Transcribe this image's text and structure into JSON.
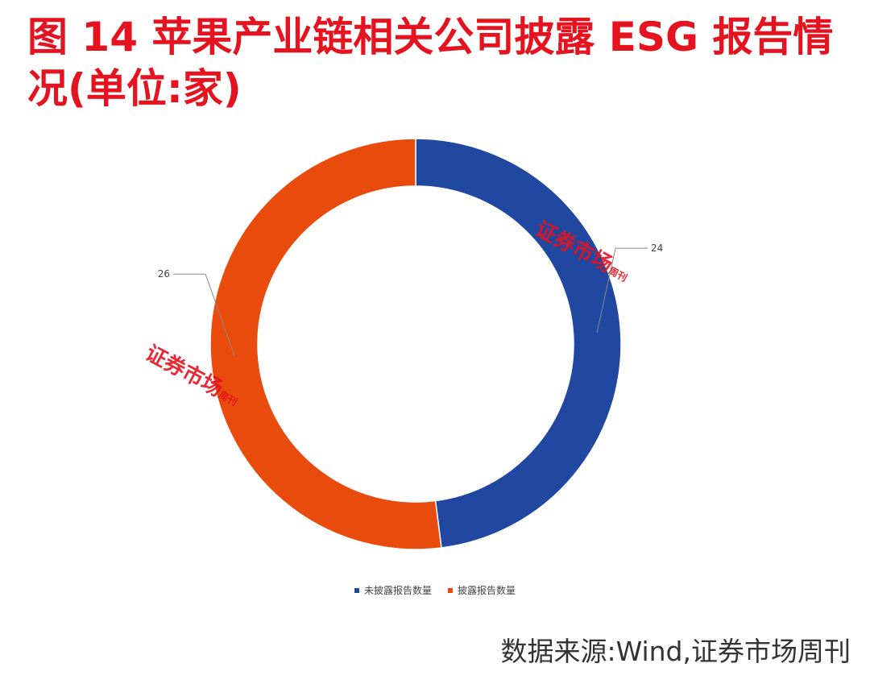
{
  "title": "图 14  苹果产业链相关公司披露 ESG 报告情况(单位:家)",
  "source": "数据来源:Wind,证券市场周刊",
  "watermark": {
    "main": "证券市场",
    "sub": "周刊"
  },
  "colors": {
    "title": "#e5121f",
    "blue": "#2148a0",
    "orange": "#e84b0c"
  },
  "chart_data": {
    "type": "pie",
    "variant": "donut",
    "title": "",
    "categories": [
      "未披露报告数量",
      "披露报告数量"
    ],
    "values": [
      24,
      26
    ],
    "colors": [
      "#2148a0",
      "#e84b0c"
    ],
    "data_labels": [
      "24",
      "26"
    ],
    "legend": "bottom"
  }
}
